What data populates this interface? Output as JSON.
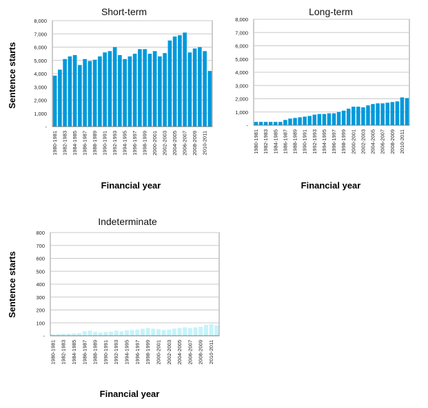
{
  "chart_data": [
    {
      "type": "bar",
      "title": "Short-term",
      "xlabel": "Financial year",
      "ylabel": "Sentence starts",
      "ylim": [
        0,
        8000
      ],
      "yticks": [
        "-",
        "1,000",
        "2,000",
        "3,000",
        "4,000",
        "5,000",
        "6,000",
        "7,000",
        "8,000"
      ],
      "color": "#0099db",
      "xtick_labels": [
        "1980-1981",
        "1982-1983",
        "1984-1985",
        "1986-1987",
        "1988-1989",
        "1990-1991",
        "1992-1993",
        "1994-1995",
        "1996-1997",
        "1998-1999",
        "2000-2001",
        "2002-2003",
        "2004-2005",
        "2006-2007",
        "2008-2009",
        "2010-2011"
      ],
      "categories": [
        "1980-1981",
        "1981-1982",
        "1982-1983",
        "1983-1984",
        "1984-1985",
        "1985-1986",
        "1986-1987",
        "1987-1988",
        "1988-1989",
        "1989-1990",
        "1990-1991",
        "1991-1992",
        "1992-1993",
        "1993-1994",
        "1994-1995",
        "1995-1996",
        "1996-1997",
        "1997-1998",
        "1998-1999",
        "1999-2000",
        "2000-2001",
        "2001-2002",
        "2002-2003",
        "2003-2004",
        "2004-2005",
        "2005-2006",
        "2006-2007",
        "2007-2008",
        "2008-2009",
        "2009-2010",
        "2010-2011",
        "2011-2012"
      ],
      "values": [
        3850,
        4300,
        5100,
        5300,
        5400,
        4650,
        5100,
        4950,
        5050,
        5300,
        5600,
        5700,
        6000,
        5400,
        5100,
        5300,
        5500,
        5850,
        5850,
        5500,
        5700,
        5300,
        5550,
        6500,
        6800,
        6900,
        7100,
        5600,
        5900,
        6000,
        5700,
        4200
      ]
    },
    {
      "type": "bar",
      "title": "Long-term",
      "xlabel": "Financial year",
      "ylabel": "",
      "ylim": [
        0,
        8000
      ],
      "yticks": [
        "-",
        "1,000",
        "2,000",
        "3,000",
        "4,000",
        "5,000",
        "6,000",
        "7,000",
        "8,000"
      ],
      "color": "#0099db",
      "xtick_labels": [
        "1980-1981",
        "1982-1983",
        "1984-1985",
        "1986-1987",
        "1988-1989",
        "1990-1991",
        "1992-1993",
        "1994-1995",
        "1996-1997",
        "1998-1999",
        "2000-2001",
        "2002-2003",
        "2004-2005",
        "2006-2007",
        "2008-2009",
        "2010-2011"
      ],
      "categories": [
        "1980-1981",
        "1981-1982",
        "1982-1983",
        "1983-1984",
        "1984-1985",
        "1985-1986",
        "1986-1987",
        "1987-1988",
        "1988-1989",
        "1989-1990",
        "1990-1991",
        "1991-1992",
        "1992-1993",
        "1993-1994",
        "1994-1995",
        "1995-1996",
        "1996-1997",
        "1997-1998",
        "1998-1999",
        "1999-2000",
        "2000-2001",
        "2001-2002",
        "2002-2003",
        "2003-2004",
        "2004-2005",
        "2005-2006",
        "2006-2007",
        "2007-2008",
        "2008-2009",
        "2009-2010",
        "2010-2011",
        "2011-2012"
      ],
      "values": [
        250,
        250,
        250,
        250,
        250,
        250,
        400,
        500,
        550,
        600,
        650,
        700,
        800,
        850,
        850,
        900,
        900,
        1000,
        1100,
        1250,
        1400,
        1400,
        1350,
        1500,
        1600,
        1650,
        1650,
        1700,
        1750,
        1800,
        2100,
        2050
      ]
    },
    {
      "type": "bar",
      "title": "Indeterminate",
      "xlabel": "Financial year",
      "ylabel": "Sentence starts",
      "ylim": [
        0,
        800
      ],
      "yticks": [
        "-",
        "100",
        "200",
        "300",
        "400",
        "500",
        "600",
        "700",
        "800"
      ],
      "color": "#c6f3fa",
      "xtick_labels": [
        "1980-1981",
        "1982-1983",
        "1984-1985",
        "1986-1987",
        "1988-1989",
        "1990-1991",
        "1992-1993",
        "1994-1995",
        "1996-1997",
        "1998-1999",
        "2000-2001",
        "2002-2003",
        "2004-2005",
        "2006-2007",
        "2008-2009",
        "2010-2011"
      ],
      "categories": [
        "1980-1981",
        "1981-1982",
        "1982-1983",
        "1983-1984",
        "1984-1985",
        "1985-1986",
        "1986-1987",
        "1987-1988",
        "1988-1989",
        "1989-1990",
        "1990-1991",
        "1991-1992",
        "1992-1993",
        "1993-1994",
        "1994-1995",
        "1995-1996",
        "1996-1997",
        "1997-1998",
        "1998-1999",
        "1999-2000",
        "2000-2001",
        "2001-2002",
        "2002-2003",
        "2003-2004",
        "2004-2005",
        "2005-2006",
        "2006-2007",
        "2007-2008",
        "2008-2009",
        "2009-2010",
        "2010-2011",
        "2011-2012"
      ],
      "values": [
        10,
        12,
        15,
        15,
        18,
        20,
        35,
        40,
        30,
        25,
        30,
        32,
        40,
        35,
        42,
        45,
        48,
        55,
        60,
        55,
        50,
        45,
        48,
        55,
        60,
        65,
        60,
        65,
        70,
        85,
        90,
        80
      ]
    }
  ]
}
